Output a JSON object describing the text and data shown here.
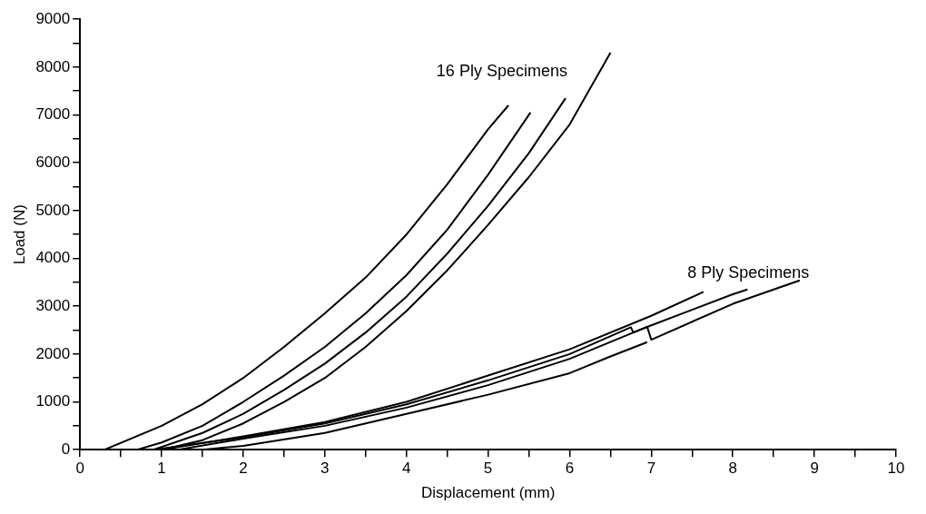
{
  "chart_data": {
    "type": "line",
    "xlabel": "Displacement (mm)",
    "ylabel": "Load (N)",
    "xlim": [
      0,
      10
    ],
    "ylim": [
      0,
      9000
    ],
    "xticks": [
      0,
      {
        "value": 0.5,
        "label": null
      },
      1,
      {
        "value": 1.5,
        "label": null
      },
      2,
      {
        "value": 2.5,
        "label": null
      },
      3,
      {
        "value": 3.5,
        "label": null
      },
      4,
      {
        "value": 4.5,
        "label": null
      },
      5,
      {
        "value": 5.5,
        "label": null
      },
      6,
      {
        "value": 6.5,
        "label": null
      },
      7,
      {
        "value": 7.5,
        "label": null
      },
      8,
      {
        "value": 8.5,
        "label": null
      },
      9,
      {
        "value": 9.5,
        "label": null
      },
      10
    ],
    "yticks": [
      0,
      {
        "value": 500,
        "label": null
      },
      1000,
      {
        "value": 1500,
        "label": null
      },
      2000,
      {
        "value": 2500,
        "label": null
      },
      3000,
      {
        "value": 3500,
        "label": null
      },
      4000,
      {
        "value": 4500,
        "label": null
      },
      5000,
      {
        "value": 5500,
        "label": null
      },
      6000,
      {
        "value": 6500,
        "label": null
      },
      7000,
      {
        "value": 7500,
        "label": null
      },
      8000,
      {
        "value": 8500,
        "label": null
      },
      9000
    ],
    "grid": false,
    "legend": false,
    "marker": "none",
    "line_style": "solid",
    "series": [
      {
        "color": "#000000",
        "x": [
          0.3,
          1,
          1.5,
          2,
          2.5,
          3,
          3.5,
          4,
          4.5,
          5,
          5.25
        ],
        "values": [
          0,
          500,
          950,
          1500,
          2150,
          2850,
          3600,
          4500,
          5550,
          6700,
          7200
        ]
      },
      {
        "color": "#000000",
        "x": [
          0.7,
          1,
          1.5,
          2,
          2.5,
          3,
          3.5,
          4,
          4.5,
          5,
          5.52
        ],
        "values": [
          0,
          150,
          500,
          1000,
          1550,
          2150,
          2850,
          3650,
          4600,
          5750,
          7050
        ]
      },
      {
        "color": "#000000",
        "x": [
          0.9,
          1.5,
          2,
          2.5,
          3,
          3.5,
          4,
          4.5,
          5,
          5.5,
          5.95
        ],
        "values": [
          0,
          350,
          750,
          1250,
          1800,
          2450,
          3200,
          4100,
          5100,
          6200,
          7350
        ]
      },
      {
        "color": "#000000",
        "x": [
          1.0,
          1.5,
          2,
          2.5,
          3,
          3.5,
          4,
          4.5,
          5,
          5.5,
          6,
          6.5
        ],
        "values": [
          0,
          200,
          550,
          1000,
          1500,
          2150,
          2900,
          3750,
          4700,
          5700,
          6800,
          8300
        ]
      },
      {
        "color": "#000000",
        "x": [
          1.0,
          2,
          3,
          4,
          5,
          6,
          7,
          7.64
        ],
        "values": [
          0,
          280,
          580,
          1000,
          1550,
          2100,
          2800,
          3300
        ]
      },
      {
        "color": "#000000",
        "x": [
          0.9,
          2,
          3,
          4,
          5,
          6,
          6.75,
          6.78,
          7,
          8,
          8.18
        ],
        "values": [
          0,
          260,
          550,
          950,
          1450,
          2000,
          2560,
          2450,
          2600,
          3250,
          3350
        ]
      },
      {
        "color": "#000000",
        "x": [
          1.2,
          2,
          3,
          4,
          5,
          6,
          6.95,
          7.0,
          8,
          8.82
        ],
        "values": [
          0,
          230,
          500,
          880,
          1350,
          1900,
          2570,
          2300,
          3050,
          3540
        ]
      },
      {
        "color": "#000000",
        "x": [
          1.5,
          2,
          3,
          4,
          5,
          6,
          6.5,
          6.95
        ],
        "values": [
          0,
          80,
          350,
          750,
          1150,
          1600,
          1950,
          2250
        ]
      }
    ],
    "annotations": [
      "16 Ply Specimens",
      "8 Ply Specimens"
    ]
  }
}
